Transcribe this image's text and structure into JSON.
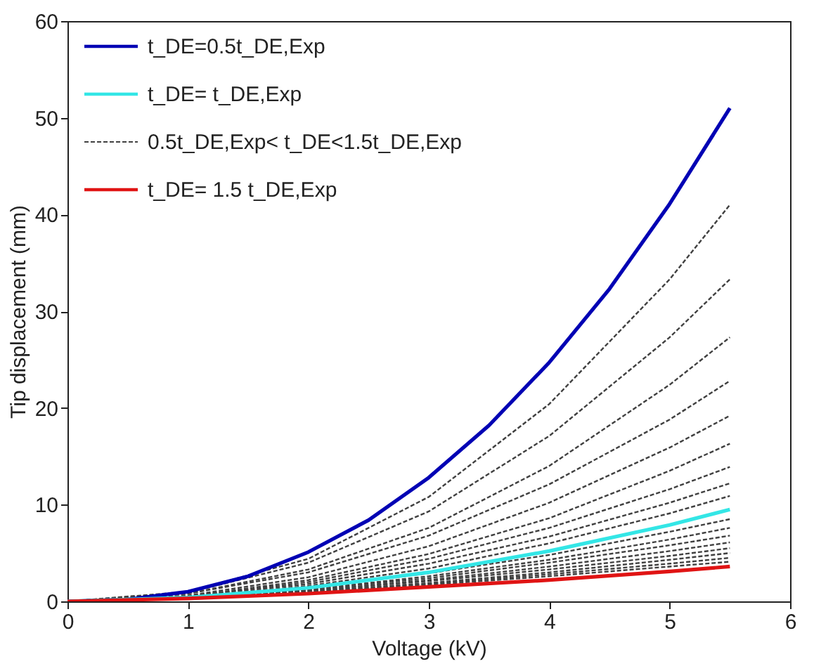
{
  "chart_data": {
    "type": "line",
    "xlabel": "Voltage (kV)",
    "ylabel": "Tip displacement (mm)",
    "xlim": [
      0,
      6
    ],
    "xticks": [
      0,
      1,
      2,
      3,
      4,
      5,
      6
    ],
    "ylim": [
      0,
      60
    ],
    "yticks": [
      0,
      10,
      20,
      30,
      40,
      50,
      60
    ],
    "grid": false,
    "legend": "top left",
    "marker": "none",
    "series": [
      {
        "name": "t_DE=0.5t_DE,Exp",
        "color": "#0000b4",
        "line_style": "solid",
        "x": [
          0,
          0.5,
          1,
          1.5,
          2,
          2.5,
          3,
          3.5,
          4,
          4.5,
          5,
          5.5
        ],
        "values": [
          0,
          0.2,
          1,
          2.6,
          5.1,
          8.4,
          12.8,
          18.2,
          24.7,
          32.3,
          41.1,
          51
        ]
      },
      {
        "name": "t_DE= t_DE,Exp",
        "color": "#33e6e6",
        "line_style": "solid",
        "x": [
          0,
          1,
          2,
          3,
          4,
          5,
          5.5
        ],
        "values": [
          0,
          0.4,
          1.4,
          3,
          5.2,
          7.9,
          9.5
        ]
      },
      {
        "name": "0.5t_DE,Exp< t_DE<1.5t_DE,Exp",
        "color": "#404040",
        "line_style": "dashed",
        "x": [
          0,
          1,
          2,
          3,
          4,
          5,
          5.5
        ],
        "values": [
          0,
          1,
          4.4,
          10.8,
          20.4,
          33.3,
          41
        ]
      },
      {
        "color": "#404040",
        "line_style": "dashed",
        "x": [
          0,
          1,
          2,
          3,
          4,
          5,
          5.5
        ],
        "values": [
          0,
          0.9,
          4,
          9.3,
          17.1,
          27.3,
          33.3
        ]
      },
      {
        "color": "#404040",
        "line_style": "dashed",
        "x": [
          0,
          1,
          2,
          3,
          4,
          5,
          5.5
        ],
        "values": [
          0,
          0.8,
          3.3,
          7.6,
          14,
          22.4,
          27.3
        ]
      },
      {
        "color": "#404040",
        "line_style": "dashed",
        "x": [
          0,
          1,
          2,
          3,
          4,
          5,
          5.5
        ],
        "values": [
          0,
          0.8,
          3,
          6.8,
          12.1,
          18.8,
          22.8
        ]
      },
      {
        "color": "#404040",
        "line_style": "dashed",
        "x": [
          0,
          1,
          2,
          3,
          4,
          5,
          5.5
        ],
        "values": [
          0,
          0.6,
          2.5,
          5.7,
          10.2,
          15.9,
          19.2
        ]
      },
      {
        "color": "#404040",
        "line_style": "dashed",
        "x": [
          0,
          1,
          2,
          3,
          4,
          5,
          5.5
        ],
        "values": [
          0,
          0.5,
          2.2,
          4.9,
          8.6,
          13.5,
          16.3
        ]
      },
      {
        "color": "#404040",
        "line_style": "dashed",
        "x": [
          0,
          1,
          2,
          3,
          4,
          5,
          5.5
        ],
        "values": [
          0,
          0.5,
          2,
          4.4,
          7.6,
          11.6,
          13.9
        ]
      },
      {
        "color": "#404040",
        "line_style": "dashed",
        "x": [
          0,
          1,
          2,
          3,
          4,
          5,
          5.5
        ],
        "values": [
          0,
          0.5,
          1.8,
          3.9,
          6.7,
          10.2,
          12.2
        ]
      },
      {
        "color": "#404040",
        "line_style": "dashed",
        "x": [
          0,
          1,
          2,
          3,
          4,
          5,
          5.5
        ],
        "values": [
          0,
          0.4,
          1.6,
          3.4,
          6,
          9.1,
          10.9
        ]
      },
      {
        "color": "#404040",
        "line_style": "dashed",
        "x": [
          0,
          1,
          2,
          3,
          4,
          5,
          5.5
        ],
        "values": [
          0,
          0.4,
          1.4,
          2.9,
          4.8,
          7.2,
          8.5
        ]
      },
      {
        "color": "#404040",
        "line_style": "dashed",
        "x": [
          0,
          1,
          2,
          3,
          4,
          5,
          5.5
        ],
        "values": [
          0,
          0.4,
          1.2,
          2.6,
          4.3,
          6.4,
          7.6
        ]
      },
      {
        "color": "#404040",
        "line_style": "dashed",
        "x": [
          0,
          1,
          2,
          3,
          4,
          5,
          5.5
        ],
        "values": [
          0,
          0.4,
          1.2,
          2.4,
          4,
          5.8,
          6.8
        ]
      },
      {
        "color": "#404040",
        "line_style": "dashed",
        "x": [
          0,
          1,
          2,
          3,
          4,
          5,
          5.5
        ],
        "values": [
          0,
          0.3,
          1.1,
          2.2,
          3.6,
          5.2,
          6.1
        ]
      },
      {
        "color": "#404040",
        "line_style": "dashed",
        "x": [
          0,
          1,
          2,
          3,
          4,
          5,
          5.5
        ],
        "values": [
          0,
          0.4,
          1.1,
          2.1,
          3.3,
          4.7,
          5.5
        ]
      },
      {
        "color": "#404040",
        "line_style": "dashed",
        "x": [
          0,
          1,
          2,
          3,
          4,
          5,
          5.5
        ],
        "values": [
          0,
          0.3,
          1,
          1.9,
          3,
          4.3,
          5
        ]
      },
      {
        "color": "#404040",
        "line_style": "dashed",
        "x": [
          0,
          1,
          2,
          3,
          4,
          5,
          5.5
        ],
        "values": [
          0,
          0.4,
          1,
          1.8,
          2.8,
          3.9,
          4.5
        ]
      },
      {
        "color": "#404040",
        "line_style": "dashed",
        "x": [
          0,
          1,
          2,
          3,
          4,
          5,
          5.5
        ],
        "values": [
          0,
          0.3,
          0.9,
          1.7,
          2.6,
          3.6,
          4.1
        ]
      },
      {
        "name": "t_DE= 1.5 t_DE,Exp",
        "color": "#e01414",
        "line_style": "solid",
        "x": [
          0,
          1,
          2,
          3,
          4,
          5,
          5.5
        ],
        "values": [
          0,
          0.3,
          0.8,
          1.5,
          2.2,
          3.1,
          3.6
        ]
      }
    ]
  }
}
